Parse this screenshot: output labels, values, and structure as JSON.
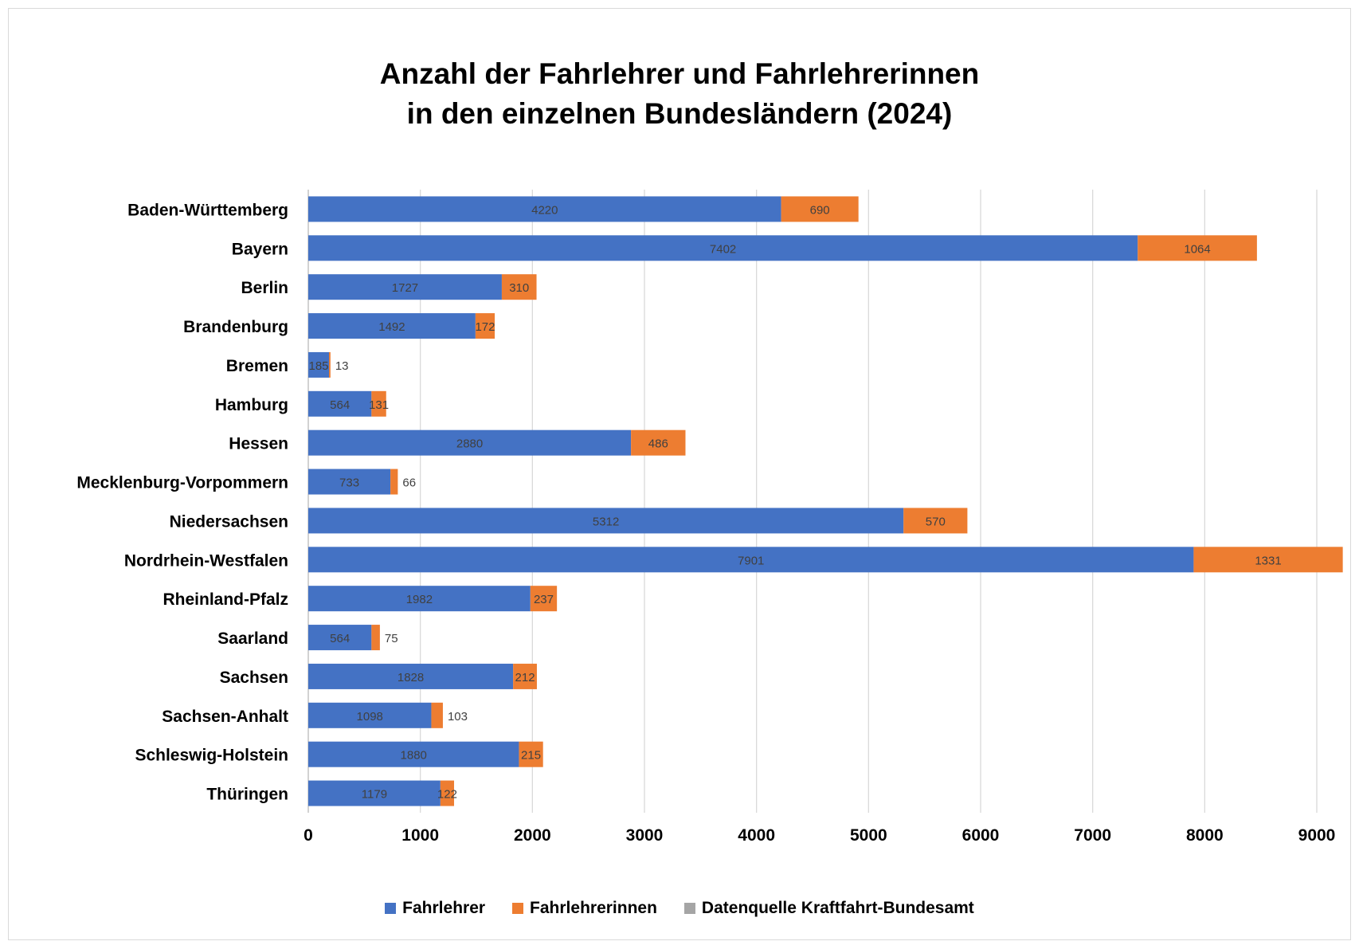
{
  "chart_data": {
    "type": "bar",
    "orientation": "horizontal",
    "stacked": true,
    "title": "Anzahl der Fahrlehrer und Fahrlehrerinnen",
    "subtitle": "in den einzelnen Bundesländern (2024)",
    "categories": [
      "Baden-Württemberg",
      "Bayern",
      "Berlin",
      "Brandenburg",
      "Bremen",
      "Hamburg",
      "Hessen",
      "Mecklenburg-Vorpommern",
      "Niedersachsen",
      "Nordrhein-Westfalen",
      "Rheinland-Pfalz",
      "Saarland",
      "Sachsen",
      "Sachsen-Anhalt",
      "Schleswig-Holstein",
      "Thüringen"
    ],
    "series": [
      {
        "name": "Fahrlehrer",
        "color": "#4472c4",
        "values": [
          4220,
          7402,
          1727,
          1492,
          185,
          564,
          2880,
          733,
          5312,
          7901,
          1982,
          564,
          1828,
          1098,
          1880,
          1179
        ]
      },
      {
        "name": "Fahrlehrerinnen",
        "color": "#ed7d31",
        "values": [
          690,
          1064,
          310,
          172,
          13,
          131,
          486,
          66,
          570,
          1331,
          237,
          75,
          212,
          103,
          215,
          122
        ]
      }
    ],
    "legend": [
      {
        "name": "Fahrlehrer",
        "color": "#4472c4"
      },
      {
        "name": "Fahrlehrerinnen",
        "color": "#ed7d31"
      },
      {
        "name": "Datenquelle Kraftfahrt-Bundesamt",
        "color": "#a5a5a5"
      }
    ],
    "xlim": [
      0,
      9000
    ],
    "xticks": [
      0,
      1000,
      2000,
      3000,
      4000,
      5000,
      6000,
      7000,
      8000,
      9000
    ],
    "grid": true,
    "legend_position": "bottom"
  }
}
